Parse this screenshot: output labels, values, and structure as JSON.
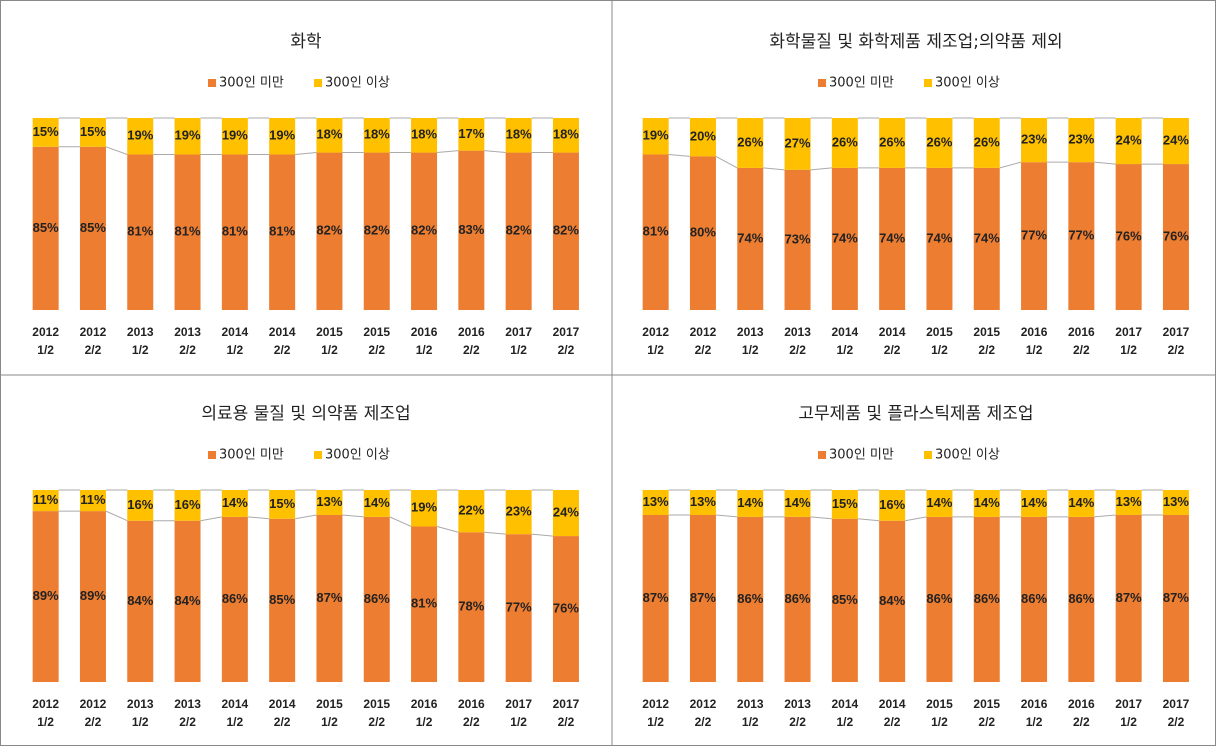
{
  "chart_data": [
    {
      "type": "stacked_bar",
      "title": "화학",
      "ylim": [
        0,
        100
      ],
      "categories": [
        [
          "2012",
          "1/2"
        ],
        [
          "2012",
          "2/2"
        ],
        [
          "2013",
          "1/2"
        ],
        [
          "2013",
          "2/2"
        ],
        [
          "2014",
          "1/2"
        ],
        [
          "2014",
          "2/2"
        ],
        [
          "2015",
          "1/2"
        ],
        [
          "2015",
          "2/2"
        ],
        [
          "2016",
          "1/2"
        ],
        [
          "2016",
          "2/2"
        ],
        [
          "2017",
          "1/2"
        ],
        [
          "2017",
          "2/2"
        ]
      ],
      "series": [
        {
          "name": "300인 미만",
          "color": "#ED7D31",
          "values": [
            85,
            85,
            81,
            81,
            81,
            81,
            82,
            82,
            82,
            83,
            82,
            82
          ],
          "value_labels": [
            "85%",
            "85%",
            "81%",
            "81%",
            "81%",
            "81%",
            "82%",
            "82%",
            "82%",
            "83%",
            "82%",
            "82%"
          ]
        },
        {
          "name": "300인 이상",
          "color": "#FFC000",
          "values": [
            15,
            15,
            19,
            19,
            19,
            19,
            18,
            18,
            18,
            17,
            18,
            18
          ],
          "value_labels": [
            "15%",
            "15%",
            "19%",
            "19%",
            "19%",
            "19%",
            "18%",
            "18%",
            "18%",
            "17%",
            "18%",
            "18%"
          ]
        }
      ]
    },
    {
      "type": "stacked_bar",
      "title": "화학물질 및 화학제품 제조업;의약품 제외",
      "ylim": [
        0,
        100
      ],
      "categories": [
        [
          "2012",
          "1/2"
        ],
        [
          "2012",
          "2/2"
        ],
        [
          "2013",
          "1/2"
        ],
        [
          "2013",
          "2/2"
        ],
        [
          "2014",
          "1/2"
        ],
        [
          "2014",
          "2/2"
        ],
        [
          "2015",
          "1/2"
        ],
        [
          "2015",
          "2/2"
        ],
        [
          "2016",
          "1/2"
        ],
        [
          "2016",
          "2/2"
        ],
        [
          "2017",
          "1/2"
        ],
        [
          "2017",
          "2/2"
        ]
      ],
      "series": [
        {
          "name": "300인 미만",
          "color": "#ED7D31",
          "values": [
            81,
            80,
            74,
            73,
            74,
            74,
            74,
            74,
            77,
            77,
            76,
            76
          ],
          "value_labels": [
            "81%",
            "80%",
            "74%",
            "73%",
            "74%",
            "74%",
            "74%",
            "74%",
            "77%",
            "77%",
            "76%",
            "76%"
          ]
        },
        {
          "name": "300인 이상",
          "color": "#FFC000",
          "values": [
            19,
            20,
            26,
            27,
            26,
            26,
            26,
            26,
            23,
            23,
            24,
            24
          ],
          "value_labels": [
            "19%",
            "20%",
            "26%",
            "27%",
            "26%",
            "26%",
            "26%",
            "26%",
            "23%",
            "23%",
            "24%",
            "24%"
          ]
        }
      ]
    },
    {
      "type": "stacked_bar",
      "title": "의료용 물질 및 의약품 제조업",
      "ylim": [
        0,
        100
      ],
      "categories": [
        [
          "2012",
          "1/2"
        ],
        [
          "2012",
          "2/2"
        ],
        [
          "2013",
          "1/2"
        ],
        [
          "2013",
          "2/2"
        ],
        [
          "2014",
          "1/2"
        ],
        [
          "2014",
          "2/2"
        ],
        [
          "2015",
          "1/2"
        ],
        [
          "2015",
          "2/2"
        ],
        [
          "2016",
          "1/2"
        ],
        [
          "2016",
          "2/2"
        ],
        [
          "2017",
          "1/2"
        ],
        [
          "2017",
          "2/2"
        ]
      ],
      "series": [
        {
          "name": "300인 미만",
          "color": "#ED7D31",
          "values": [
            89,
            89,
            84,
            84,
            86,
            85,
            87,
            86,
            81,
            78,
            77,
            76
          ],
          "value_labels": [
            "89%",
            "89%",
            "84%",
            "84%",
            "86%",
            "85%",
            "87%",
            "86%",
            "81%",
            "78%",
            "77%",
            "76%"
          ]
        },
        {
          "name": "300인 이상",
          "color": "#FFC000",
          "values": [
            11,
            11,
            16,
            16,
            14,
            15,
            13,
            14,
            19,
            22,
            23,
            24
          ],
          "value_labels": [
            "11%",
            "11%",
            "16%",
            "16%",
            "14%",
            "15%",
            "13%",
            "14%",
            "19%",
            "22%",
            "23%",
            "24%"
          ]
        }
      ]
    },
    {
      "type": "stacked_bar",
      "title": "고무제품 및 플라스틱제품 제조업",
      "ylim": [
        0,
        100
      ],
      "categories": [
        [
          "2012",
          "1/2"
        ],
        [
          "2012",
          "2/2"
        ],
        [
          "2013",
          "1/2"
        ],
        [
          "2013",
          "2/2"
        ],
        [
          "2014",
          "1/2"
        ],
        [
          "2014",
          "2/2"
        ],
        [
          "2015",
          "1/2"
        ],
        [
          "2015",
          "2/2"
        ],
        [
          "2016",
          "1/2"
        ],
        [
          "2016",
          "2/2"
        ],
        [
          "2017",
          "1/2"
        ],
        [
          "2017",
          "2/2"
        ]
      ],
      "series": [
        {
          "name": "300인 미만",
          "color": "#ED7D31",
          "values": [
            87,
            87,
            86,
            86,
            85,
            84,
            86,
            86,
            86,
            86,
            87,
            87
          ],
          "value_labels": [
            "87%",
            "87%",
            "86%",
            "86%",
            "85%",
            "84%",
            "86%",
            "86%",
            "86%",
            "86%",
            "87%",
            "87%"
          ]
        },
        {
          "name": "300인 이상",
          "color": "#FFC000",
          "values": [
            13,
            13,
            14,
            14,
            15,
            16,
            14,
            14,
            14,
            14,
            13,
            13
          ],
          "value_labels": [
            "13%",
            "13%",
            "14%",
            "14%",
            "15%",
            "16%",
            "14%",
            "14%",
            "14%",
            "14%",
            "13%",
            "13%"
          ]
        }
      ]
    }
  ]
}
